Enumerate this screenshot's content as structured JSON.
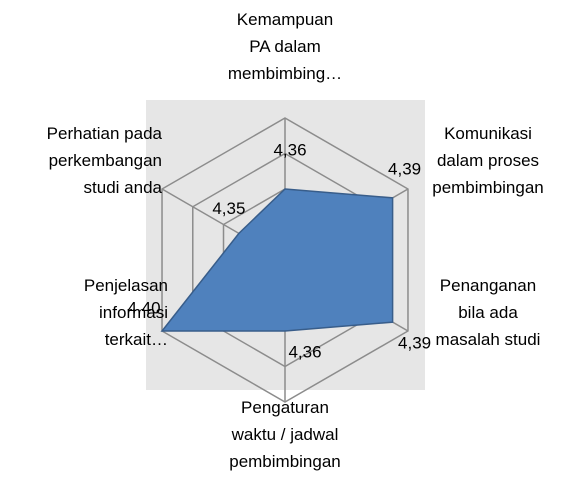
{
  "chart_data": {
    "type": "radar",
    "categories": [
      "Kemampuan\nPA dalam\nmembimbing…",
      "Komunikasi\ndalam proses\npembimbingan",
      "Penanganan\nbila ada\nmasalah studi",
      "Pengaturan\nwaktu / jadwal\npembimbingan",
      "Penjelasan\ninformasi\nterkait…",
      "Perhatian pada\nperkembangan\nstudi anda"
    ],
    "values": [
      4.36,
      4.39,
      4.39,
      4.36,
      4.4,
      4.35
    ],
    "value_labels": [
      "4,36",
      "4,39",
      "4,39",
      "4,36",
      "4,40",
      "4,35"
    ],
    "color": "#4f81bd",
    "ylim": [
      4.32,
      4.4
    ],
    "yticks": [
      4.32,
      4.34,
      4.36,
      4.38,
      4.4
    ],
    "grid": true
  }
}
